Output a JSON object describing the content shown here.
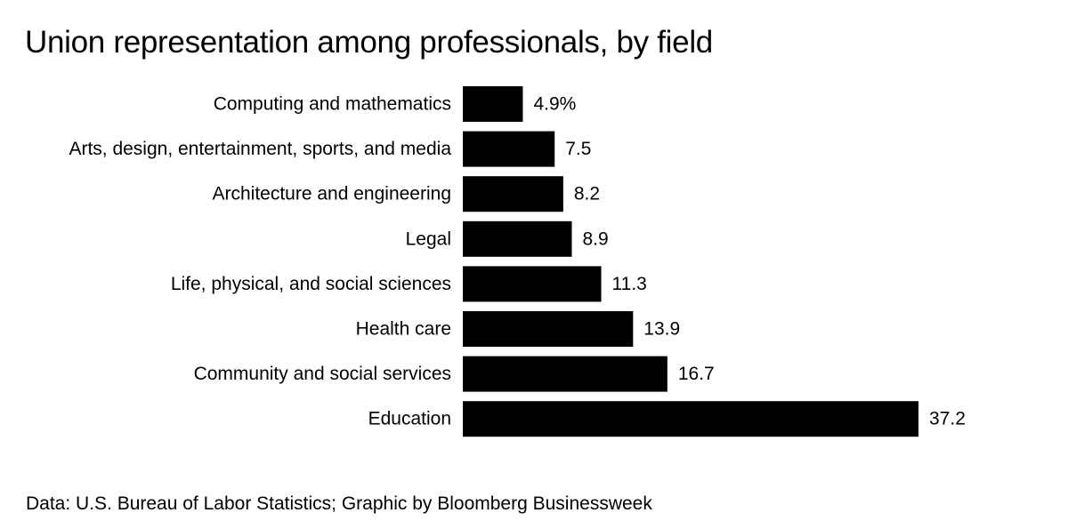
{
  "chart_data": {
    "type": "bar",
    "orientation": "horizontal",
    "title": "Union representation among professionals, by field",
    "categories": [
      "Computing and mathematics",
      "Arts, design, entertainment, sports, and media",
      "Architecture and engineering",
      "Legal",
      "Life, physical, and social sciences",
      "Health care",
      "Community and social services",
      "Education"
    ],
    "values": [
      4.9,
      7.5,
      8.2,
      8.9,
      11.3,
      13.9,
      16.7,
      37.2
    ],
    "value_labels": [
      "4.9%",
      "7.5",
      "8.2",
      "8.9",
      "11.3",
      "13.9",
      "16.7",
      "37.2"
    ],
    "unit": "%",
    "xlim": [
      0,
      37.2
    ],
    "xlabel": "",
    "ylabel": "",
    "grid": false,
    "bar_color": "#000000"
  },
  "source": "Data: U.S. Bureau of Labor Statistics; Graphic by Bloomberg Businessweek"
}
